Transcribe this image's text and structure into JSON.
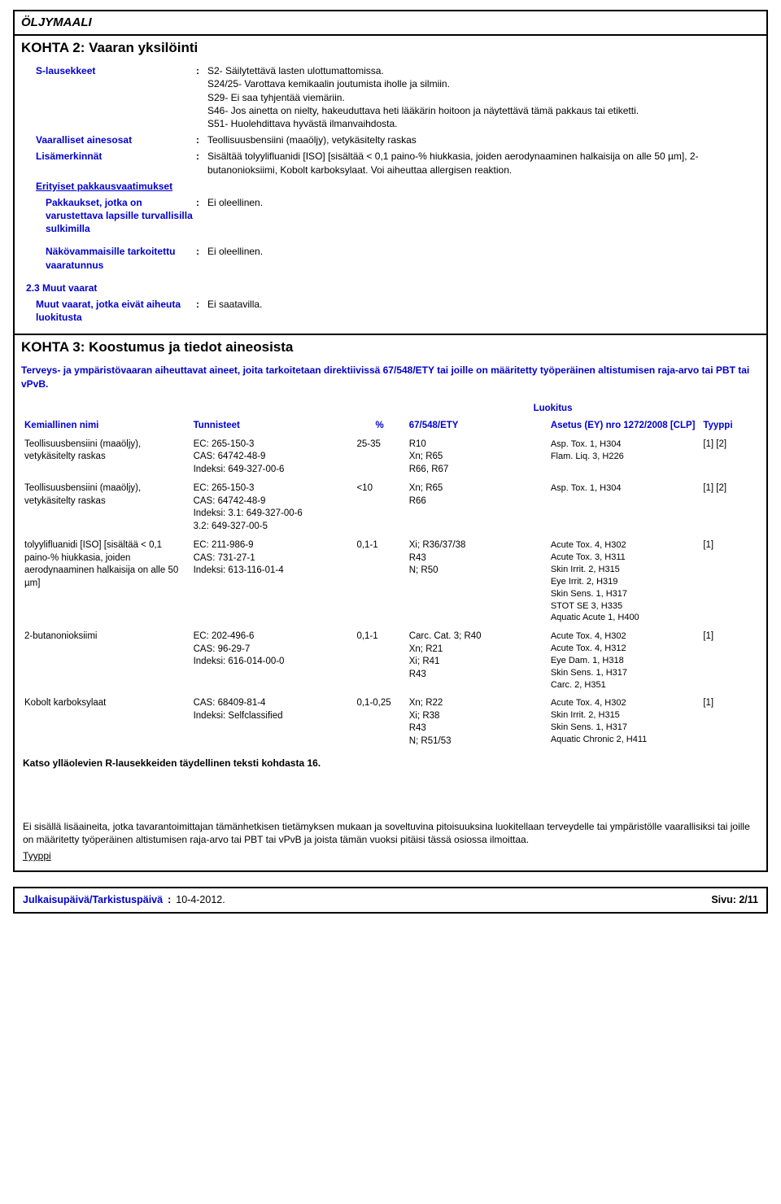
{
  "doc_title": "ÖLJYMAALI",
  "section2": {
    "header": "KOHTA 2: Vaaran yksilöinti",
    "s_lausekkeet_label": "S-lausekkeet",
    "s_lausekkeet_value": "S2- Säilytettävä lasten ulottumattomissa.\nS24/25- Varottava kemikaalin joutumista iholle ja silmiin.\nS29- Ei saa tyhjentää viemäriin.\nS46- Jos ainetta on nielty, hakeuduttava heti lääkärin hoitoon ja näytettävä tämä pakkaus tai etiketti.\nS51- Huolehdittava hyvästä ilmanvaihdosta.",
    "vaaralliset_label": "Vaaralliset ainesosat",
    "vaaralliset_value": "Teollisuusbensiini (maaöljy), vetykäsitelty raskas",
    "lisamerk_label": "Lisämerkinnät",
    "lisamerk_value": "Sisältää tolyylifluanidi [ISO] [sisältää < 0,1 paino-% hiukkasia, joiden aerodynaaminen halkaisija on alle 50 µm], 2-butanonioksiimi, Kobolt karboksylaat. Voi aiheuttaa allergisen reaktion.",
    "erityiset_label": "Erityiset pakkausvaatimukset",
    "pakkaukset_label": "Pakkaukset, jotka on varustettava lapsille turvallisilla sulkimilla",
    "pakkaukset_value": "Ei oleellinen.",
    "nako_label": "Näkövammaisille tarkoitettu vaaratunnus",
    "nako_value": "Ei oleellinen.",
    "muut_header": "2.3 Muut vaarat",
    "muut_label": "Muut vaarat, jotka eivät aiheuta luokitusta",
    "muut_value": "Ei saatavilla."
  },
  "section3": {
    "header": "KOHTA 3: Koostumus ja tiedot aineosista",
    "intro": "Terveys- ja ympäristövaaran aiheuttavat aineet, joita tarkoitetaan direktiivissä 67/548/ETY tai joille on määritetty työperäinen altistumisen raja-arvo tai PBT tai vPvB.",
    "col_name": "Kemiallinen nimi",
    "col_ids": "Tunnisteet",
    "col_pct": "%",
    "col_675": "67/548/ETY",
    "col_luokitus": "Luokitus",
    "col_asetus": "Asetus (EY) nro 1272/2008 [CLP]",
    "col_tyyppi": "Tyyppi",
    "rows": [
      {
        "name": "Teollisuusbensiini (maaöljy), vetykäsitelty raskas",
        "ids": "EC: 265-150-3\nCAS: 64742-48-9\nIndeksi: 649-327-00-6",
        "pct": "25-35",
        "c675": "R10\nXn; R65\nR66, R67",
        "asetus": "Asp. Tox. 1, H304\nFlam. Liq. 3, H226",
        "tyyppi": "[1] [2]"
      },
      {
        "name": "Teollisuusbensiini (maaöljy), vetykäsitelty raskas",
        "ids": "EC: 265-150-3\nCAS: 64742-48-9\nIndeksi: 3.1: 649-327-00-6\n3.2: 649-327-00-5",
        "pct": "<10",
        "c675": "Xn; R65\nR66",
        "asetus": "Asp. Tox. 1, H304",
        "tyyppi": "[1] [2]"
      },
      {
        "name": "tolyylifluanidi [ISO] [sisältää < 0,1 paino-% hiukkasia, joiden aerodynaaminen halkaisija on alle 50 µm]",
        "ids": "EC: 211-986-9\nCAS: 731-27-1\nIndeksi: 613-116-01-4",
        "pct": "0,1-1",
        "c675": "Xi; R36/37/38\nR43\nN; R50",
        "asetus": "Acute Tox. 4, H302\nAcute Tox. 3, H311\nSkin Irrit. 2, H315\nEye Irrit. 2, H319\nSkin Sens. 1, H317\nSTOT SE 3, H335\nAquatic Acute 1, H400",
        "tyyppi": "[1]"
      },
      {
        "name": "2-butanonioksiimi",
        "ids": "EC: 202-496-6\nCAS: 96-29-7\nIndeksi: 616-014-00-0",
        "pct": "0,1-1",
        "c675": "Carc. Cat. 3; R40\nXn; R21\nXi; R41\nR43",
        "asetus": "Acute Tox. 4, H302\nAcute Tox. 4, H312\nEye Dam. 1, H318\nSkin Sens. 1, H317\nCarc. 2, H351",
        "tyyppi": "[1]"
      },
      {
        "name": "Kobolt karboksylaat",
        "ids": "CAS: 68409-81-4\nIndeksi: Selfclassified",
        "pct": "0,1-0,25",
        "c675": "Xn; R22\nXi; R38\nR43\nN; R51/53",
        "asetus": "Acute Tox. 4, H302\nSkin Irrit. 2, H315\nSkin Sens. 1, H317\nAquatic Chronic 2, H411",
        "tyyppi": "[1]"
      }
    ],
    "below_table": "Katso ylläolevien R-lausekkeiden täydellinen teksti kohdasta 16.",
    "note": "Ei sisällä lisäaineita, jotka tavarantoimittajan tämänhetkisen tietämyksen mukaan ja soveltuvina pitoisuuksina luokitellaan terveydelle tai ympäristölle vaarallisiksi tai joille on määritetty työperäinen altistumisen raja-arvo tai PBT tai vPvB ja joista tämän vuoksi pitäisi tässä osiossa ilmoittaa.",
    "tyyppi_label": "Tyyppi"
  },
  "footer": {
    "label": "Julkaisupäivä/Tarkistuspäivä",
    "value": "10-4-2012.",
    "page": "Sivu: 2/11"
  }
}
